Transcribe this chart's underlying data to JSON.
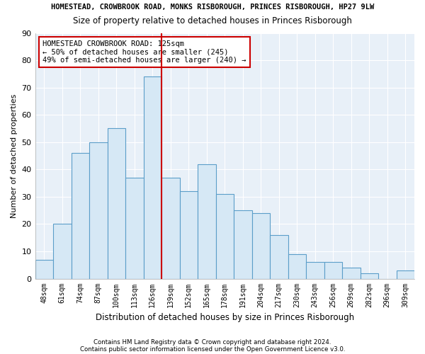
{
  "title_top": "HOMESTEAD, CROWBROOK ROAD, MONKS RISBOROUGH, PRINCES RISBOROUGH, HP27 9LW",
  "title_main": "Size of property relative to detached houses in Princes Risborough",
  "xlabel": "Distribution of detached houses by size in Princes Risborough",
  "ylabel": "Number of detached properties",
  "footnote1": "Contains HM Land Registry data © Crown copyright and database right 2024.",
  "footnote2": "Contains public sector information licensed under the Open Government Licence v3.0.",
  "categories": [
    "48sqm",
    "61sqm",
    "74sqm",
    "87sqm",
    "100sqm",
    "113sqm",
    "126sqm",
    "139sqm",
    "152sqm",
    "165sqm",
    "178sqm",
    "191sqm",
    "204sqm",
    "217sqm",
    "230sqm",
    "243sqm",
    "256sqm",
    "269sqm",
    "282sqm",
    "296sqm",
    "309sqm"
  ],
  "values": [
    7,
    20,
    46,
    50,
    55,
    37,
    74,
    37,
    32,
    42,
    31,
    25,
    24,
    16,
    9,
    6,
    6,
    4,
    2,
    0,
    3
  ],
  "bar_color": "#d6e8f5",
  "bar_edge_color": "#5b9ec9",
  "vline_color": "#cc0000",
  "vline_index": 6,
  "annotation_text": "HOMESTEAD CROWBROOK ROAD: 125sqm\n← 50% of detached houses are smaller (245)\n49% of semi-detached houses are larger (240) →",
  "annotation_box_color": "#cc0000",
  "ylim": [
    0,
    90
  ],
  "yticks": [
    0,
    10,
    20,
    30,
    40,
    50,
    60,
    70,
    80,
    90
  ],
  "plot_bg_color": "#e8f0f8",
  "fig_bg_color": "#ffffff",
  "grid_color": "#ffffff"
}
